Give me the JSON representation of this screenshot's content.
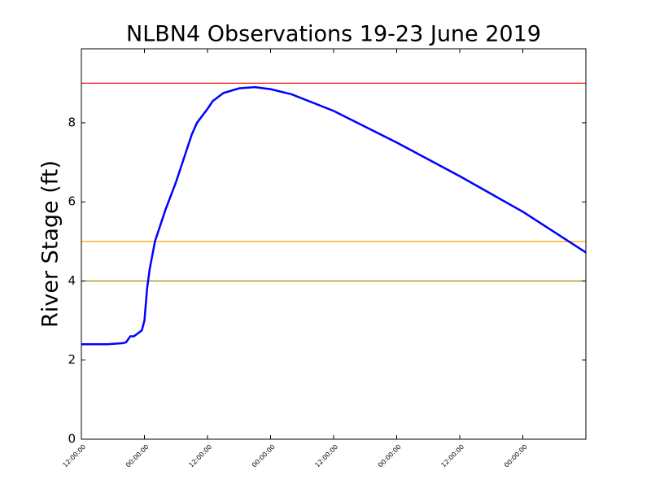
{
  "chart_data": {
    "type": "line",
    "title": "NLBN4 Observations 19-23 June 2019",
    "y_label": "River Stage (ft)",
    "x": [
      0,
      5,
      8,
      8.5,
      9.3,
      10,
      11.5,
      12,
      12.5,
      13,
      14,
      16,
      18,
      19.5,
      21,
      22,
      24,
      25,
      27,
      30,
      33,
      36,
      40,
      48,
      60,
      72,
      84,
      96
    ],
    "values": [
      2.4,
      2.4,
      2.43,
      2.45,
      2.6,
      2.6,
      2.75,
      3.0,
      3.8,
      4.3,
      5.0,
      5.8,
      6.5,
      7.1,
      7.7,
      8.0,
      8.35,
      8.55,
      8.75,
      8.87,
      8.9,
      8.85,
      8.72,
      8.3,
      7.5,
      6.65,
      5.75,
      4.72
    ],
    "color": "#0000ff",
    "xlim": [
      0,
      96
    ],
    "xticks": [
      {
        "value": 0,
        "label": "12:00:00"
      },
      {
        "value": 12,
        "label": "00:00:00"
      },
      {
        "value": 24,
        "label": "12:00:00"
      },
      {
        "value": 36,
        "label": "00:00:00"
      },
      {
        "value": 48,
        "label": "12:00:00"
      },
      {
        "value": 60,
        "label": "00:00:00"
      },
      {
        "value": 72,
        "label": "12:00:00"
      },
      {
        "value": 84,
        "label": "00:00:00"
      }
    ],
    "ylim": [
      0,
      9.87
    ],
    "yticks": [
      0,
      2,
      4,
      6,
      8
    ],
    "reference_lines": [
      {
        "value": 9,
        "color": "#ff0000"
      },
      {
        "value": 5,
        "color": "#ffa500"
      },
      {
        "value": 4,
        "color": "#9a8a00"
      }
    ]
  }
}
